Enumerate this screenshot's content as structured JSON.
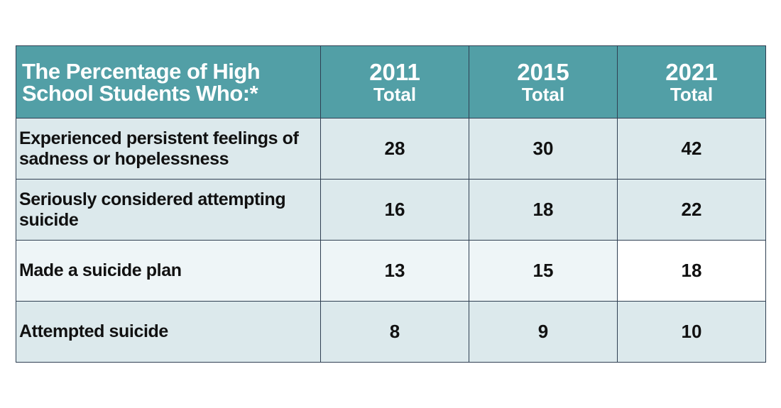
{
  "colors": {
    "header_bg": "#529fa6",
    "row_bg": "#dce9ec",
    "row_bg_light": "#eef5f7",
    "cell_white": "#ffffff",
    "border": "#2f3f52"
  },
  "chart_data": {
    "type": "table",
    "title": "",
    "header": {
      "label": "The Percentage of High School Students Who:*",
      "columns": [
        {
          "year": "2011",
          "sub": "Total"
        },
        {
          "year": "2015",
          "sub": "Total"
        },
        {
          "year": "2021",
          "sub": "Total"
        }
      ]
    },
    "rows": [
      {
        "label": "Experienced persistent feelings of sadness or hopelessness",
        "values": [
          28,
          30,
          42
        ]
      },
      {
        "label": "Seriously considered attempting suicide",
        "values": [
          16,
          18,
          22
        ]
      },
      {
        "label": "Made a suicide plan",
        "values": [
          13,
          15,
          18
        ]
      },
      {
        "label": "Attempted suicide",
        "values": [
          8,
          9,
          10
        ]
      }
    ]
  }
}
